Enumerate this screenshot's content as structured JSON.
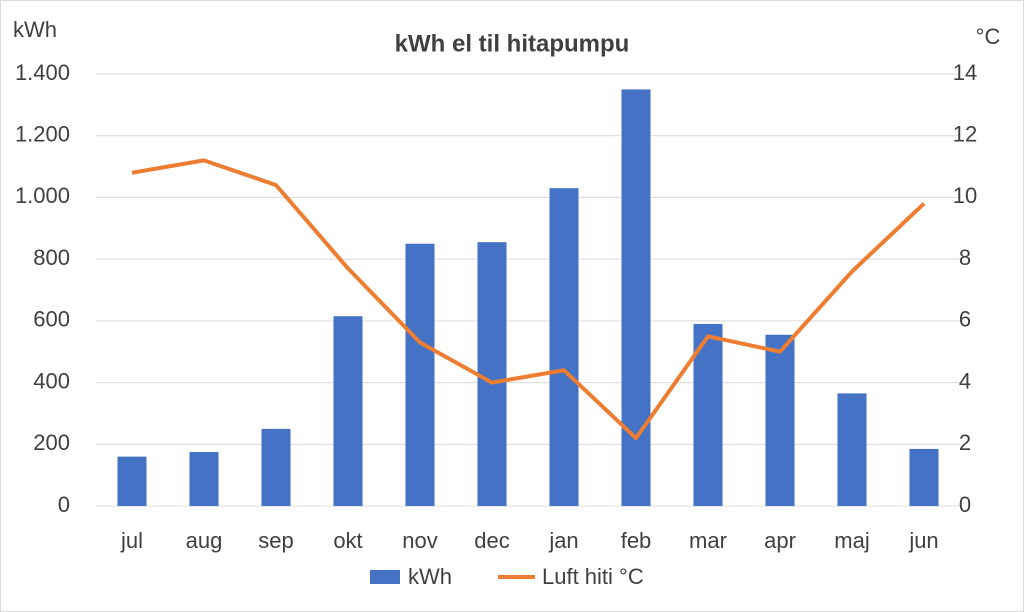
{
  "chart_data": {
    "type": "bar+line",
    "title": "kWh el til hitapumpu",
    "ylabel": "kWh",
    "y2label": "°C",
    "categories": [
      "jul",
      "aug",
      "sep",
      "okt",
      "nov",
      "dec",
      "jan",
      "feb",
      "mar",
      "apr",
      "maj",
      "jun"
    ],
    "series": [
      {
        "name": "kWh",
        "type": "bar",
        "color": "#4472c4",
        "values": [
          160,
          175,
          250,
          615,
          850,
          855,
          1030,
          1350,
          590,
          555,
          365,
          185
        ]
      },
      {
        "name": "Luft hiti °C",
        "type": "line",
        "axis": "y2",
        "color": "#ed7d31",
        "values": [
          10.8,
          11.2,
          10.4,
          7.7,
          5.3,
          4.0,
          4.4,
          2.2,
          5.5,
          5.0,
          7.6,
          9.8
        ]
      }
    ],
    "ylim": [
      0,
      1400
    ],
    "yticks": [
      0,
      200,
      400,
      600,
      800,
      {
        "value": 1000,
        "label": "1.000"
      },
      {
        "value": 1200,
        "label": "1.200"
      },
      {
        "value": 1400,
        "label": "1.400"
      }
    ],
    "y2lim": [
      0,
      14
    ],
    "y2ticks": [
      0,
      2,
      4,
      6,
      8,
      10,
      12,
      14
    ],
    "grid": true,
    "legend": "bottom"
  }
}
